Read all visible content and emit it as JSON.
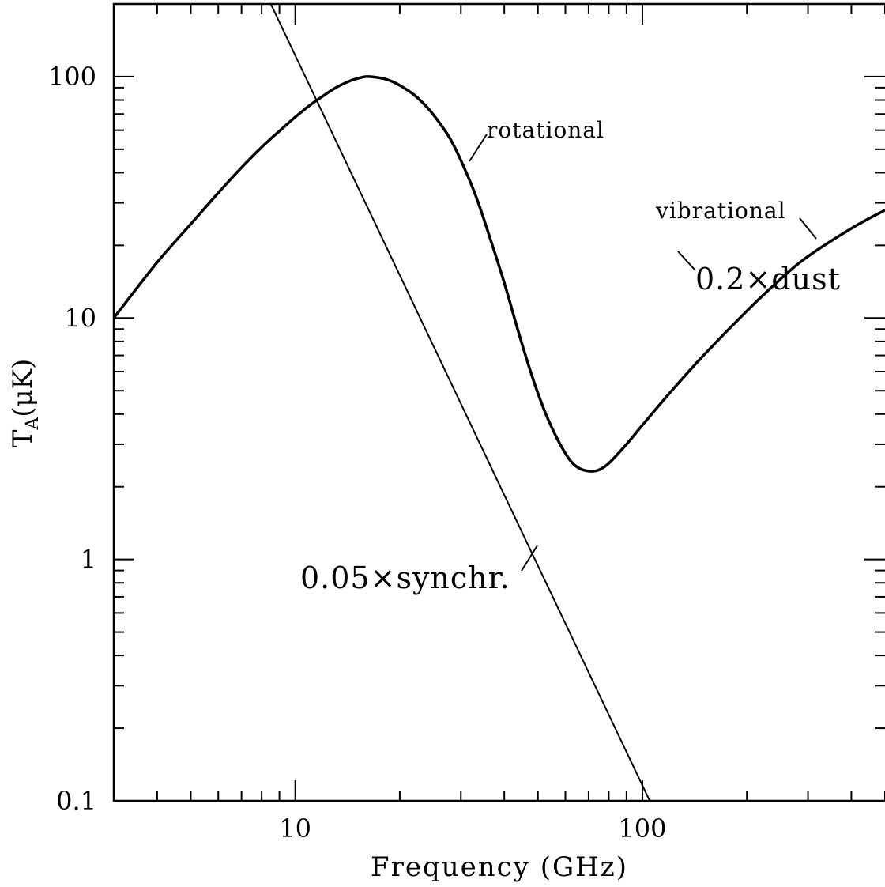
{
  "chart_data": {
    "type": "line",
    "title": "",
    "xlabel": "Frequency (GHz)",
    "ylabel_main": "T",
    "ylabel_sub": "A",
    "ylabel_rest": "(μK)",
    "x_scale": "log",
    "y_scale": "log",
    "xlim": [
      3.0,
      500
    ],
    "ylim": [
      0.1,
      200
    ],
    "x_ticks": [
      {
        "value": 10,
        "label": "10"
      },
      {
        "value": 100,
        "label": "100"
      }
    ],
    "y_ticks": [
      {
        "value": 0.1,
        "label": "0.1"
      },
      {
        "value": 1,
        "label": "1"
      },
      {
        "value": 10,
        "label": "10"
      },
      {
        "value": 100,
        "label": "100"
      }
    ],
    "grid": false,
    "legend": "none",
    "series": [
      {
        "id": "spinning-plus-dust",
        "style": "thick",
        "x": [
          3,
          4,
          5,
          6,
          7,
          8,
          9,
          10,
          11,
          12,
          13,
          14,
          15,
          16,
          17,
          18,
          19,
          20,
          22,
          24,
          26,
          28,
          30,
          33,
          36,
          40,
          44,
          48,
          52,
          56,
          60,
          63,
          66,
          69,
          72,
          75,
          80,
          90,
          100,
          120,
          150,
          200,
          250,
          300,
          400,
          500
        ],
        "y": [
          10,
          17,
          24.5,
          33,
          42,
          51,
          59.5,
          68,
          76,
          83,
          89.5,
          94.5,
          98,
          100,
          99.5,
          98,
          95.5,
          92,
          84,
          74.5,
          64.5,
          55,
          45,
          32.5,
          22.5,
          14,
          8.7,
          5.8,
          4.2,
          3.3,
          2.75,
          2.5,
          2.38,
          2.33,
          2.32,
          2.35,
          2.5,
          3.0,
          3.6,
          4.9,
          7.0,
          10.7,
          14.5,
          18.0,
          23.5,
          28
        ]
      },
      {
        "id": "synchrotron",
        "style": "thin",
        "x": [
          8.5,
          105
        ],
        "y": [
          200,
          0.1
        ]
      }
    ],
    "annotations": [
      {
        "id": "rotational",
        "text": "rotational",
        "size": "small"
      },
      {
        "id": "vibrational",
        "text": "vibrational",
        "size": "small"
      },
      {
        "id": "dust",
        "text": "0.2×dust",
        "size": "big"
      },
      {
        "id": "synchr",
        "text": "0.05×synchr.",
        "size": "big"
      }
    ]
  }
}
